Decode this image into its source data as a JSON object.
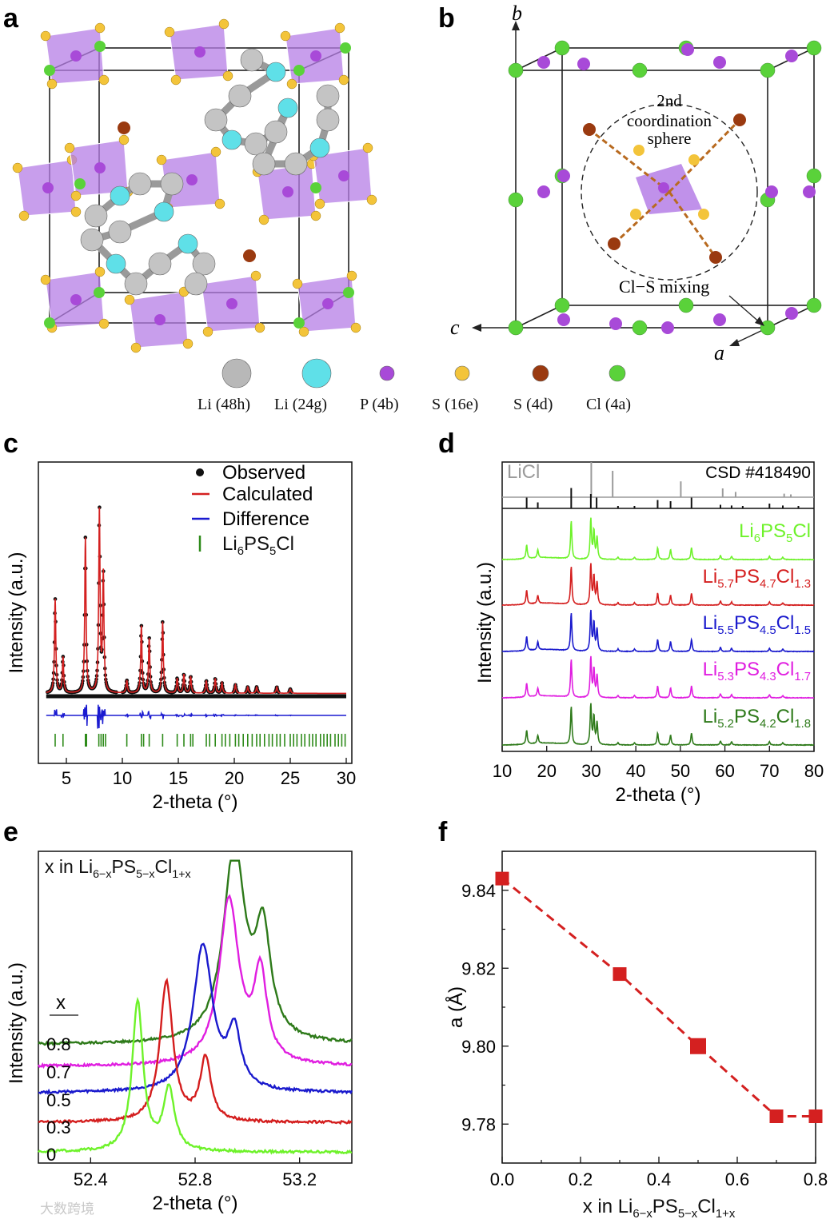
{
  "panels": {
    "a": "a",
    "b": "b",
    "c": "c",
    "d": "d",
    "e": "e",
    "f": "f"
  },
  "crystal_legend": {
    "items": [
      {
        "label": "Li (48h)",
        "color": "#b8b8b8"
      },
      {
        "label": "Li (24g)",
        "color": "#5fe0e8"
      },
      {
        "label": "P (4b)",
        "color": "#a84ad8"
      },
      {
        "label": "S (16e)",
        "color": "#f3c43a"
      },
      {
        "label": "S (4d)",
        "color": "#9a3a10"
      },
      {
        "label": "Cl (4a)",
        "color": "#5ad23a"
      }
    ]
  },
  "panel_b": {
    "axis_b": "b",
    "axis_c": "c",
    "axis_a": "a",
    "sphere_label_1": "2nd",
    "sphere_label_2": "coordination",
    "sphere_label_3": "sphere",
    "mixing_label": "Cl−S mixing"
  },
  "watermark": "大数跨境",
  "chart_data": [
    {
      "id": "c",
      "type": "line",
      "title": "",
      "xlabel": "2-theta (°)",
      "ylabel": "Intensity (a.u.)",
      "xlim": [
        2.5,
        30.5
      ],
      "xticks": [
        5,
        10,
        15,
        20,
        25,
        30
      ],
      "legend": [
        {
          "label": "Observed",
          "color": "#111111",
          "marker": "dot"
        },
        {
          "label": "Calculated",
          "color": "#d42020",
          "marker": "line"
        },
        {
          "label": "Difference",
          "color": "#1a1ad0",
          "marker": "line"
        },
        {
          "label": "Li6PS5Cl",
          "color": "#2e8b1a",
          "marker": "tick"
        }
      ],
      "peaks": [
        {
          "x": 4.0,
          "h": 0.45
        },
        {
          "x": 4.7,
          "h": 0.17
        },
        {
          "x": 6.7,
          "h": 0.74
        },
        {
          "x": 7.95,
          "h": 0.88
        },
        {
          "x": 8.3,
          "h": 0.56
        },
        {
          "x": 10.4,
          "h": 0.06
        },
        {
          "x": 11.7,
          "h": 0.32
        },
        {
          "x": 12.4,
          "h": 0.26
        },
        {
          "x": 13.6,
          "h": 0.34
        },
        {
          "x": 14.9,
          "h": 0.07
        },
        {
          "x": 15.5,
          "h": 0.09
        },
        {
          "x": 16.1,
          "h": 0.08
        },
        {
          "x": 17.5,
          "h": 0.06
        },
        {
          "x": 18.3,
          "h": 0.07
        },
        {
          "x": 18.9,
          "h": 0.05
        },
        {
          "x": 20.1,
          "h": 0.04
        },
        {
          "x": 21.2,
          "h": 0.03
        },
        {
          "x": 22.0,
          "h": 0.03
        },
        {
          "x": 23.8,
          "h": 0.03
        },
        {
          "x": 25.0,
          "h": 0.02
        }
      ],
      "reflections": [
        4.0,
        4.7,
        6.7,
        6.8,
        7.9,
        8.1,
        8.3,
        8.5,
        10.4,
        11.7,
        11.9,
        12.4,
        13.6,
        14.9,
        15.5,
        16.1,
        16.3,
        17.5,
        17.8,
        18.3,
        18.9,
        19.2,
        19.6,
        20.1,
        20.4,
        20.8,
        21.2,
        21.6,
        22.0,
        22.3,
        22.7,
        23.1,
        23.4,
        23.8,
        24.1,
        24.5,
        25.0,
        25.3,
        25.6,
        26.0,
        26.3,
        26.7,
        27.0,
        27.3,
        27.7,
        28.0,
        28.3,
        28.6,
        29.0,
        29.3,
        29.6,
        29.9
      ]
    },
    {
      "id": "d",
      "type": "line",
      "xlabel": "2-theta (°)",
      "ylabel": "Intensity (a.u.)",
      "xlim": [
        10,
        80
      ],
      "xticks": [
        10,
        20,
        30,
        40,
        50,
        60,
        70,
        80
      ],
      "references": [
        {
          "name": "LiCl",
          "color": "#9a9a9a",
          "peaks": [
            {
              "x": 30.0,
              "h": 1.0
            },
            {
              "x": 34.8,
              "h": 0.75
            },
            {
              "x": 50.1,
              "h": 0.45
            },
            {
              "x": 59.5,
              "h": 0.25
            },
            {
              "x": 62.4,
              "h": 0.15
            },
            {
              "x": 73.3,
              "h": 0.1
            },
            {
              "x": 74.8,
              "h": 0.08
            }
          ]
        },
        {
          "name": "CSD #418490",
          "color": "#111111",
          "peaks": [
            {
              "x": 15.5,
              "h": 0.45
            },
            {
              "x": 18.0,
              "h": 0.25
            },
            {
              "x": 25.5,
              "h": 0.85
            },
            {
              "x": 29.9,
              "h": 0.6
            },
            {
              "x": 31.2,
              "h": 0.45
            },
            {
              "x": 36.0,
              "h": 0.1
            },
            {
              "x": 39.7,
              "h": 0.1
            },
            {
              "x": 44.9,
              "h": 0.35
            },
            {
              "x": 47.8,
              "h": 0.3
            },
            {
              "x": 52.5,
              "h": 0.45
            },
            {
              "x": 59.0,
              "h": 0.15
            },
            {
              "x": 61.5,
              "h": 0.12
            },
            {
              "x": 64.0,
              "h": 0.1
            },
            {
              "x": 70.0,
              "h": 0.2
            },
            {
              "x": 73.0,
              "h": 0.12
            },
            {
              "x": 76.5,
              "h": 0.1
            }
          ]
        }
      ],
      "series": [
        {
          "name": "Li6PS5Cl",
          "color": "#6ef22a",
          "base": "Li",
          "sub1": "6",
          "mid": "PS",
          "sub2": "5",
          "end": "Cl",
          "sub3": ""
        },
        {
          "name": "Li5.7PS4.7Cl1.3",
          "color": "#d41e1e",
          "base": "Li",
          "sub1": "5.7",
          "mid": "PS",
          "sub2": "4.7",
          "end": "Cl",
          "sub3": "1.3"
        },
        {
          "name": "Li5.5PS4.5Cl1.5",
          "color": "#1a1acd",
          "base": "Li",
          "sub1": "5.5",
          "mid": "PS",
          "sub2": "4.5",
          "end": "Cl",
          "sub3": "1.5"
        },
        {
          "name": "Li5.3PS4.3Cl1.7",
          "color": "#e01ee0",
          "base": "Li",
          "sub1": "5.3",
          "mid": "PS",
          "sub2": "4.3",
          "end": "Cl",
          "sub3": "1.7"
        },
        {
          "name": "Li5.2PS4.2Cl1.8",
          "color": "#2e7a1a",
          "base": "Li",
          "sub1": "5.2",
          "mid": "PS",
          "sub2": "4.2",
          "end": "Cl",
          "sub3": "1.8"
        }
      ],
      "peaks": [
        {
          "x": 15.5,
          "h": 0.35
        },
        {
          "x": 18.0,
          "h": 0.2
        },
        {
          "x": 25.5,
          "h": 0.95
        },
        {
          "x": 29.9,
          "h": 1.0
        },
        {
          "x": 30.6,
          "h": 0.7
        },
        {
          "x": 31.3,
          "h": 0.55
        },
        {
          "x": 36.0,
          "h": 0.06
        },
        {
          "x": 39.7,
          "h": 0.06
        },
        {
          "x": 44.9,
          "h": 0.3
        },
        {
          "x": 47.8,
          "h": 0.25
        },
        {
          "x": 52.5,
          "h": 0.3
        },
        {
          "x": 59.0,
          "h": 0.1
        },
        {
          "x": 61.5,
          "h": 0.08
        },
        {
          "x": 70.0,
          "h": 0.08
        },
        {
          "x": 73.0,
          "h": 0.06
        }
      ]
    },
    {
      "id": "e",
      "type": "line",
      "xlabel": "2-theta (°)",
      "ylabel": "Intensity (a.u.)",
      "xlim": [
        52.2,
        53.4
      ],
      "xticks": [
        52.4,
        52.8,
        53.2
      ],
      "legend_title": {
        "pre": "x in Li",
        "s1": "6−x",
        "m": "PS",
        "s2": "5−x",
        "e": "Cl",
        "s3": "1+x"
      },
      "x_header": "x",
      "series": [
        {
          "x": "0.8",
          "color": "#2e7a1a",
          "baseline": 0.78,
          "peaks": [
            {
              "c": 52.95,
              "h": 0.62,
              "w": 0.05
            },
            {
              "c": 53.06,
              "h": 0.33,
              "w": 0.035
            }
          ],
          "rise": 0.06
        },
        {
          "x": "0.7",
          "color": "#e01ee0",
          "baseline": 0.65,
          "peaks": [
            {
              "c": 52.93,
              "h": 0.53,
              "w": 0.045
            },
            {
              "c": 53.05,
              "h": 0.28,
              "w": 0.03
            }
          ],
          "rise": 0.05
        },
        {
          "x": "0.5",
          "color": "#1a1acd",
          "baseline": 0.55,
          "peaks": [
            {
              "c": 52.83,
              "h": 0.47,
              "w": 0.045
            },
            {
              "c": 52.95,
              "h": 0.18,
              "w": 0.03
            }
          ],
          "rise": 0.04
        },
        {
          "x": "0.3",
          "color": "#d41e1e",
          "baseline": 0.42,
          "peaks": [
            {
              "c": 52.69,
              "h": 0.45,
              "w": 0.03
            },
            {
              "c": 52.84,
              "h": 0.2,
              "w": 0.025
            }
          ],
          "rise": 0.03
        },
        {
          "x": "0",
          "color": "#6ef22a",
          "baseline": 0.31,
          "peaks": [
            {
              "c": 52.58,
              "h": 0.48,
              "w": 0.025
            },
            {
              "c": 52.7,
              "h": 0.2,
              "w": 0.025
            }
          ],
          "rise": 0.02
        }
      ]
    },
    {
      "id": "f",
      "type": "line",
      "xlabel": {
        "pre": "x in Li",
        "s1": "6−x",
        "m": "PS",
        "s2": "5−x",
        "e": "Cl",
        "s3": "1+x"
      },
      "ylabel": "a (Å)",
      "xlim": [
        0,
        0.8
      ],
      "ylim": [
        9.77,
        9.85
      ],
      "xticks": [
        "0.0",
        "0.2",
        "0.4",
        "0.6",
        "0.8"
      ],
      "yticks": [
        "9.78",
        "9.80",
        "9.82",
        "9.84"
      ],
      "x": [
        0.0,
        0.3,
        0.5,
        0.7,
        0.8
      ],
      "y": [
        9.843,
        9.8185,
        9.8,
        9.782,
        9.782
      ],
      "color": "#d42020"
    }
  ]
}
